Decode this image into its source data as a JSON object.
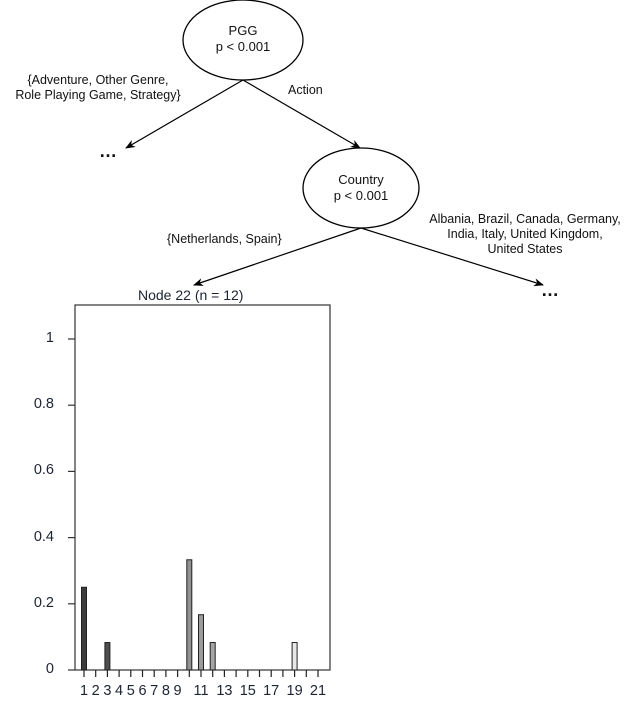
{
  "tree": {
    "root": {
      "variable": "PGG",
      "pvalue": "p < 0.001"
    },
    "root_edges": {
      "left_label_line1": "{Adventure, Other Genre,",
      "left_label_line2": "Role Playing Game, Strategy}",
      "right_label": "Action",
      "left_target": "…"
    },
    "child": {
      "variable": "Country",
      "pvalue": "p < 0.001"
    },
    "child_edges": {
      "left_label": "{Netherlands, Spain}",
      "right_label_line1": "Albania, Brazil, Canada, Germany,",
      "right_label_line2": "India, Italy, United Kingdom,",
      "right_label_line3": "United States",
      "right_target": "…"
    }
  },
  "chart_data": {
    "type": "bar",
    "title": "Node 22 (n = 12)",
    "categories": [
      "1",
      "2",
      "3",
      "4",
      "5",
      "6",
      "7",
      "8",
      "9",
      "10",
      "11",
      "12",
      "13",
      "14",
      "15",
      "16",
      "17",
      "18",
      "19",
      "20",
      "21"
    ],
    "values": [
      0.25,
      0,
      0.083,
      0,
      0,
      0,
      0,
      0,
      0,
      0.333,
      0.167,
      0.083,
      0,
      0,
      0,
      0,
      0,
      0,
      0.083,
      0,
      0
    ],
    "xtick_labels": [
      "1",
      "2",
      "3",
      "4",
      "5",
      "6",
      "7",
      "8",
      "9",
      "11",
      "13",
      "15",
      "17",
      "19",
      "21"
    ],
    "ytick_labels": [
      "0",
      "0.2",
      "0.4",
      "0.6",
      "0.8",
      "1"
    ],
    "xlabel": "",
    "ylabel": "",
    "ylim": [
      0,
      1.1
    ],
    "grid": false,
    "legend": "none",
    "bar_fill": "grayscale gradient (dark for low categories to light for high categories)"
  }
}
